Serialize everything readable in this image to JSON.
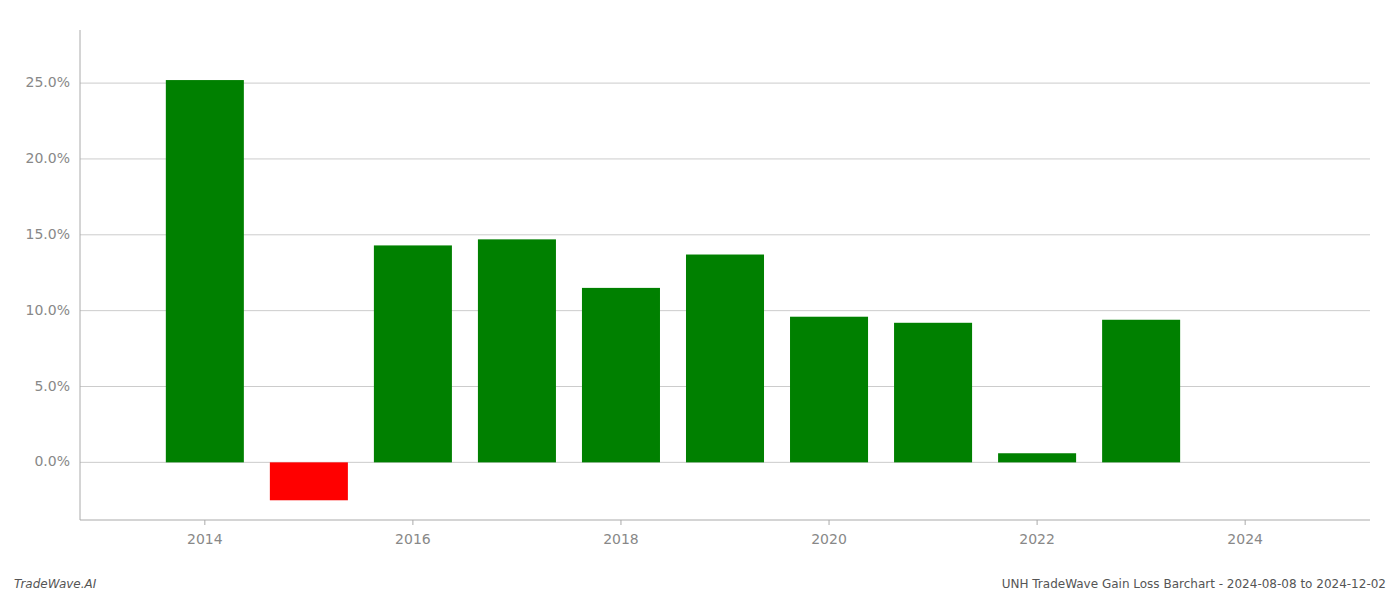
{
  "chart_data": {
    "type": "bar",
    "x": [
      2014,
      2015,
      2016,
      2017,
      2018,
      2019,
      2020,
      2021,
      2022,
      2023
    ],
    "values": [
      0.252,
      -0.025,
      0.143,
      0.147,
      0.115,
      0.137,
      0.096,
      0.092,
      0.006,
      0.094
    ],
    "colors": [
      "#008000",
      "#ff0000",
      "#008000",
      "#008000",
      "#008000",
      "#008000",
      "#008000",
      "#008000",
      "#008000",
      "#008000"
    ],
    "xlim": [
      2012.8,
      2025.2
    ],
    "xticks": [
      2014,
      2016,
      2018,
      2020,
      2022,
      2024
    ],
    "ylim": [
      -0.038,
      0.285
    ],
    "yticks": [
      {
        "value": 0.0,
        "label": "0.0%"
      },
      {
        "value": 0.05,
        "label": "5.0%"
      },
      {
        "value": 0.1,
        "label": "10.0%"
      },
      {
        "value": 0.15,
        "label": "15.0%"
      },
      {
        "value": 0.2,
        "label": "20.0%"
      },
      {
        "value": 0.25,
        "label": "25.0%"
      }
    ],
    "grid": true,
    "annotations": [
      "TradeWave.AI",
      "UNH TradeWave Gain Loss Barchart - 2024-08-08 to 2024-12-02"
    ]
  }
}
